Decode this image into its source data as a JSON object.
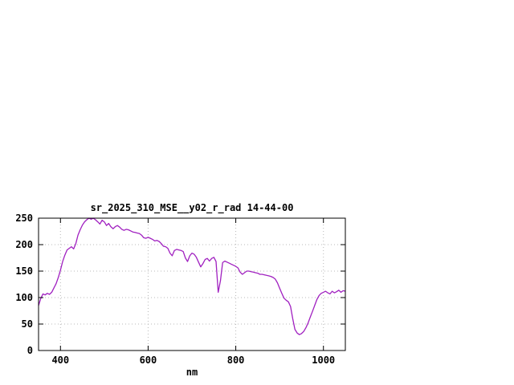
{
  "chart_data": {
    "type": "line",
    "title": "sr_2025_310_MSE__y02_r_rad 14-44-00",
    "xlabel": "nm",
    "ylabel": "",
    "xlim": [
      350,
      1050
    ],
    "ylim": [
      0,
      250
    ],
    "xticks": [
      400,
      600,
      800,
      1000
    ],
    "yticks": [
      0,
      50,
      100,
      150,
      200,
      250
    ],
    "grid": true,
    "legend": "none",
    "line_color": "#a020c0",
    "x": [
      350,
      355,
      360,
      365,
      370,
      375,
      380,
      385,
      390,
      395,
      400,
      405,
      410,
      415,
      420,
      425,
      430,
      435,
      440,
      445,
      450,
      455,
      460,
      465,
      470,
      475,
      480,
      485,
      490,
      495,
      500,
      505,
      510,
      515,
      520,
      525,
      530,
      535,
      540,
      545,
      550,
      555,
      560,
      565,
      570,
      575,
      580,
      585,
      590,
      595,
      600,
      605,
      610,
      615,
      620,
      625,
      630,
      635,
      640,
      645,
      650,
      655,
      660,
      665,
      670,
      675,
      680,
      685,
      690,
      695,
      700,
      705,
      710,
      715,
      720,
      725,
      730,
      735,
      740,
      745,
      750,
      755,
      760,
      765,
      770,
      775,
      780,
      785,
      790,
      795,
      800,
      805,
      810,
      815,
      820,
      825,
      830,
      835,
      840,
      845,
      850,
      855,
      860,
      865,
      870,
      875,
      880,
      885,
      890,
      895,
      900,
      905,
      910,
      915,
      920,
      925,
      930,
      935,
      940,
      945,
      950,
      955,
      960,
      965,
      970,
      975,
      980,
      985,
      990,
      995,
      1000,
      1005,
      1010,
      1015,
      1020,
      1025,
      1030,
      1035,
      1040,
      1045,
      1050
    ],
    "values": [
      85,
      98,
      107,
      105,
      108,
      106,
      110,
      118,
      126,
      138,
      152,
      168,
      180,
      190,
      193,
      196,
      192,
      202,
      218,
      228,
      237,
      243,
      247,
      250,
      248,
      250,
      247,
      243,
      239,
      246,
      243,
      236,
      240,
      234,
      230,
      234,
      236,
      233,
      229,
      227,
      229,
      228,
      226,
      224,
      223,
      222,
      221,
      218,
      213,
      212,
      214,
      212,
      210,
      207,
      208,
      206,
      202,
      197,
      196,
      193,
      184,
      179,
      189,
      191,
      190,
      189,
      187,
      175,
      168,
      179,
      184,
      182,
      176,
      167,
      158,
      164,
      172,
      174,
      169,
      174,
      176,
      168,
      110,
      132,
      166,
      169,
      167,
      165,
      163,
      161,
      159,
      156,
      148,
      144,
      147,
      150,
      150,
      149,
      148,
      147,
      146,
      144,
      144,
      143,
      142,
      141,
      140,
      138,
      135,
      128,
      118,
      108,
      99,
      95,
      92,
      83,
      60,
      40,
      33,
      30,
      32,
      36,
      43,
      52,
      63,
      74,
      85,
      96,
      104,
      108,
      110,
      112,
      109,
      107,
      112,
      109,
      111,
      114,
      110,
      113,
      112
    ]
  }
}
